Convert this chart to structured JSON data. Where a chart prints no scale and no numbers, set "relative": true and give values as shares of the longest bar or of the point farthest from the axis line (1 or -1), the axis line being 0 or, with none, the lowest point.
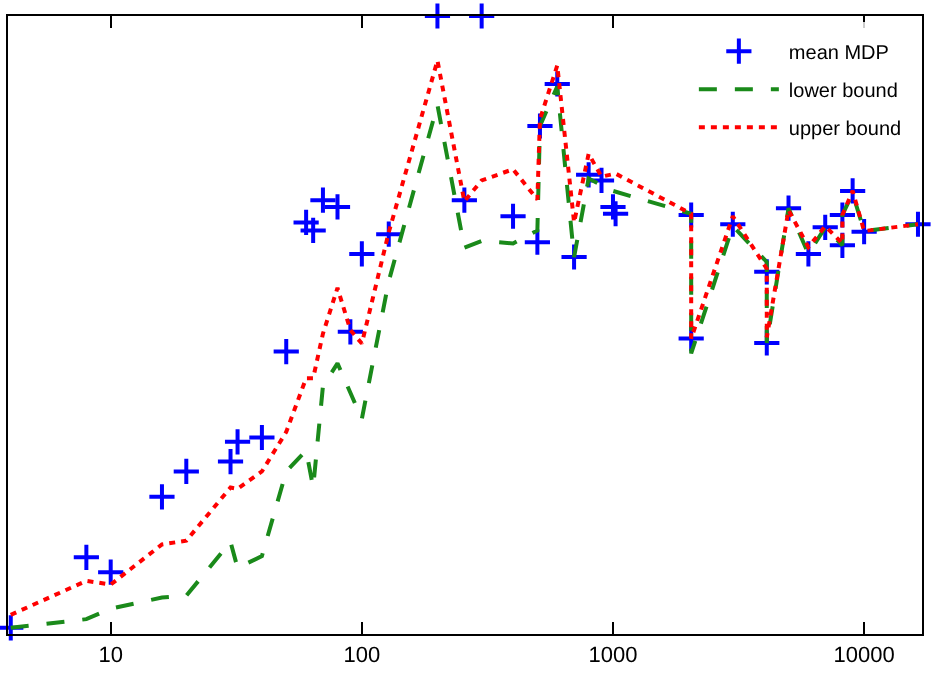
{
  "chart_data": {
    "type": "scatter",
    "relative": true,
    "log": "x",
    "xlim": [
      3.9,
      17000
    ],
    "xticks": [
      10,
      100,
      1000,
      10000
    ],
    "tick_labels": "x",
    "grid": false,
    "legend": "top right",
    "series": [
      {
        "name": "mean MDP",
        "marker": "cross",
        "color": "#0000ff",
        "x": [
          4,
          8,
          10,
          16,
          20,
          30,
          32,
          40,
          50,
          60,
          64,
          70,
          80,
          90,
          100,
          128,
          200,
          256,
          300,
          400,
          500,
          512,
          600,
          700,
          800,
          900,
          1000,
          1024,
          2048,
          2048,
          3000,
          4096,
          4096,
          5000,
          6000,
          7000,
          8192,
          8192,
          9000,
          10000,
          16384
        ],
        "values": [
          0.01,
          0.124,
          0.1,
          0.222,
          0.263,
          0.279,
          0.311,
          0.318,
          0.457,
          0.666,
          0.653,
          0.702,
          0.691,
          0.489,
          0.615,
          0.647,
          1.0,
          0.702,
          1.0,
          0.676,
          0.634,
          0.822,
          0.89,
          0.61,
          0.743,
          0.734,
          0.691,
          0.68,
          0.678,
          0.478,
          0.663,
          0.586,
          0.471,
          0.689,
          0.615,
          0.658,
          0.629,
          0.678,
          0.717,
          0.651,
          0.663
        ]
      },
      {
        "name": "lower bound",
        "type": "line",
        "line_style": "dashed",
        "color": "#1a8a1a",
        "x": [
          4,
          8,
          10,
          16,
          20,
          30,
          32,
          40,
          50,
          60,
          64,
          70,
          80,
          100,
          128,
          200,
          256,
          300,
          400,
          500,
          512,
          600,
          700,
          800,
          1000,
          2048,
          2048,
          3000,
          4096,
          4096,
          5000,
          6000,
          7000,
          8192,
          8192,
          9000,
          10000,
          16384
        ],
        "values": [
          0.01,
          0.024,
          0.041,
          0.059,
          0.062,
          0.149,
          0.107,
          0.126,
          0.263,
          0.297,
          0.237,
          0.401,
          0.438,
          0.348,
          0.571,
          0.856,
          0.625,
          0.636,
          0.632,
          0.653,
          0.822,
          0.886,
          0.61,
          0.737,
          0.717,
          0.68,
          0.454,
          0.66,
          0.602,
          0.471,
          0.689,
          0.615,
          0.658,
          0.629,
          0.678,
          0.713,
          0.652,
          0.663
        ]
      },
      {
        "name": "upper bound",
        "type": "line",
        "line_style": "dotted",
        "color": "#ff0000",
        "x": [
          4,
          8,
          10,
          16,
          20,
          30,
          32,
          40,
          50,
          60,
          64,
          70,
          80,
          90,
          100,
          128,
          200,
          256,
          300,
          400,
          500,
          512,
          600,
          700,
          800,
          900,
          1024,
          2048,
          2048,
          3000,
          4096,
          4096,
          5000,
          6000,
          7000,
          8192,
          8192,
          9000,
          10000,
          16384
        ],
        "values": [
          0.031,
          0.086,
          0.08,
          0.145,
          0.151,
          0.237,
          0.235,
          0.263,
          0.327,
          0.414,
          0.414,
          0.486,
          0.56,
          0.492,
          0.47,
          0.65,
          0.928,
          0.7,
          0.734,
          0.752,
          0.703,
          0.833,
          0.92,
          0.666,
          0.777,
          0.74,
          0.745,
          0.68,
          0.478,
          0.676,
          0.591,
          0.48,
          0.686,
          0.626,
          0.66,
          0.632,
          0.678,
          0.717,
          0.652,
          0.663
        ]
      }
    ]
  }
}
